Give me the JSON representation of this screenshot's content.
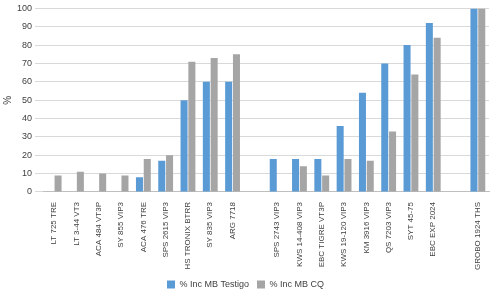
{
  "chart_data": {
    "type": "bar",
    "categories": [
      "LT 725 TRE",
      "LT 3-44 VT3",
      "ACA 484 VT3P",
      "SY 855 VIP3",
      "ACA 476 TRE",
      "SPS 2615 VIP3",
      "HS TRONIX BTRR",
      "SY 835 VIP3",
      "ARG 7718",
      null,
      "SPS 2743 VIP3",
      "KWS 14-408 VIP3",
      "EBC TIGRE VT3P",
      "KWS 19-120 VIP3",
      "KM 3916 VIP3",
      "QS 7203 VIP3",
      "SYT 45-75",
      "EBC EXP 2024",
      null,
      "GROBO 1924 THS"
    ],
    "series": [
      {
        "name": "% Inc MB Testigo",
        "color": "#5b9bd5",
        "values": [
          0,
          0,
          0,
          0,
          8,
          17,
          50,
          60,
          60,
          null,
          18,
          18,
          18,
          36,
          54,
          70,
          80,
          92,
          null,
          100
        ]
      },
      {
        "name": "% Inc MB CQ",
        "color": "#a5a5a5",
        "values": [
          9,
          11,
          10,
          9,
          18,
          20,
          71,
          73,
          75,
          null,
          0,
          14,
          9,
          18,
          17,
          33,
          64,
          84,
          null,
          100
        ]
      }
    ],
    "y_label": "%",
    "ylim": [
      0,
      100
    ],
    "yticks": [
      0,
      10,
      20,
      30,
      40,
      50,
      60,
      70,
      80,
      90,
      100
    ],
    "grid": true,
    "legend": "bottom"
  }
}
